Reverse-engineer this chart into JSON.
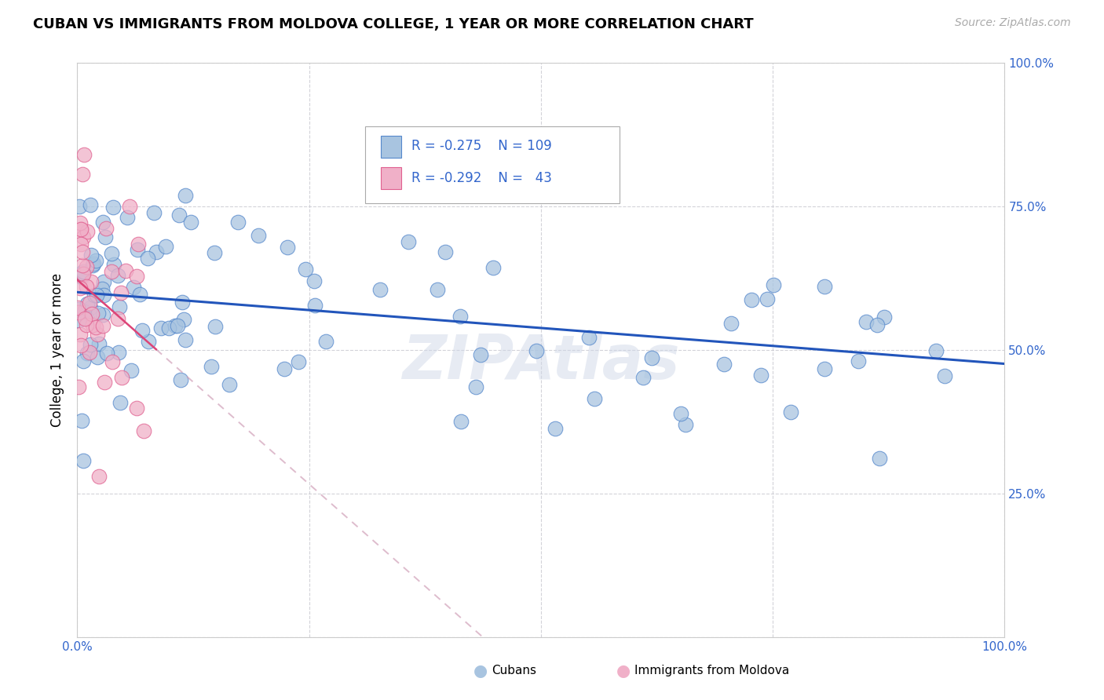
{
  "title": "CUBAN VS IMMIGRANTS FROM MOLDOVA COLLEGE, 1 YEAR OR MORE CORRELATION CHART",
  "source": "Source: ZipAtlas.com",
  "ylabel": "College, 1 year or more",
  "xlim": [
    0,
    1
  ],
  "ylim": [
    0,
    1
  ],
  "background_color": "#ffffff",
  "grid_color": "#c8c8d0",
  "cubans_color": "#a8c4e0",
  "moldova_color": "#f0b0c8",
  "cubans_edge_color": "#5588cc",
  "moldova_edge_color": "#e06090",
  "trendline_cubans_color": "#2255bb",
  "trendline_moldova_solid_color": "#dd4477",
  "trendline_moldova_dashed_color": "#d0a0b8",
  "watermark": "ZIPAtlas",
  "legend_text_color": "#3366cc",
  "tick_color": "#3366cc",
  "title_fontsize": 13,
  "source_fontsize": 10,
  "axis_label_fontsize": 12,
  "tick_fontsize": 11,
  "legend_fontsize": 12
}
